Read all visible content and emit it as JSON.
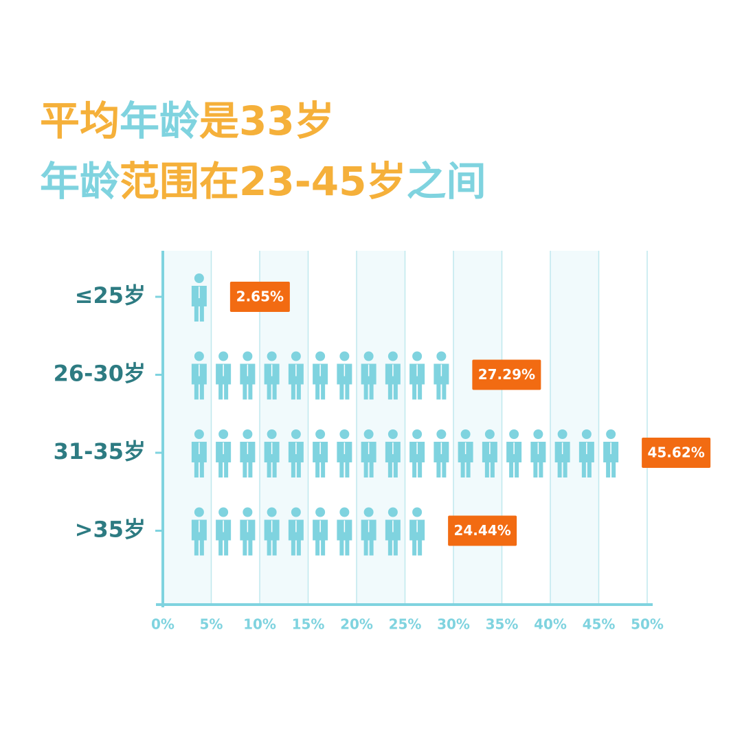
{
  "chart_data": {
    "type": "pictograph",
    "title_lines": [
      [
        {
          "text": "平均",
          "color": "#f5b03a"
        },
        {
          "text": "年龄",
          "color": "#7fd3df"
        },
        {
          "text": "是33岁",
          "color": "#f5b03a"
        }
      ],
      [
        {
          "text": "年龄",
          "color": "#7fd3df"
        },
        {
          "text": "范围在23-45岁",
          "color": "#f5b03a"
        },
        {
          "text": "之间",
          "color": "#7fd3df"
        }
      ]
    ],
    "categories": [
      "≤25岁",
      "26-30岁",
      "31-35岁",
      ">35岁"
    ],
    "values": [
      2.65,
      27.29,
      45.62,
      24.44
    ],
    "value_labels": [
      "2.65%",
      "27.29%",
      "45.62%",
      "24.44%"
    ],
    "color": "#7fd3df",
    "label_color": "#f26b12",
    "xlim": [
      0,
      50
    ],
    "xticks": [
      {
        "value": 0,
        "label": "0%"
      },
      {
        "value": 5,
        "label": "5%"
      },
      {
        "value": 10,
        "label": "10%"
      },
      {
        "value": 15,
        "label": "15%"
      },
      {
        "value": 20,
        "label": "20%"
      },
      {
        "value": 25,
        "label": "25%"
      },
      {
        "value": 30,
        "label": "30%"
      },
      {
        "value": 35,
        "label": "35%"
      },
      {
        "value": 40,
        "label": "40%"
      },
      {
        "value": 45,
        "label": "45%"
      },
      {
        "value": 50,
        "label": "50%"
      }
    ],
    "grid": true
  }
}
